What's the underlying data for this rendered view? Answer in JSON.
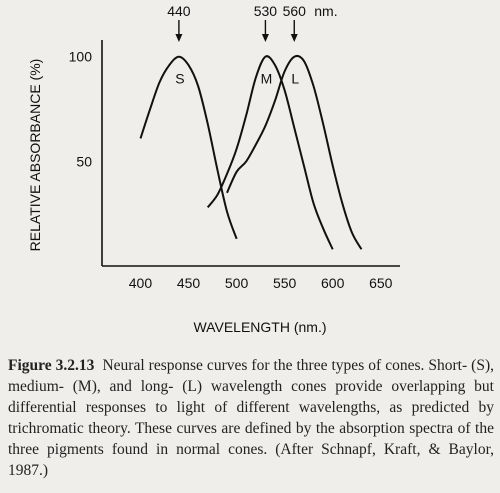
{
  "chart_data": {
    "type": "line",
    "title": "",
    "xlabel": "WAVELENGTH (nm.)",
    "ylabel": "RELATIVE ABSORBANCE (%)",
    "xlim": [
      360,
      670
    ],
    "ylim": [
      0,
      108
    ],
    "x_ticks": [
      400,
      450,
      500,
      550,
      600,
      650
    ],
    "y_ticks": [
      50,
      100
    ],
    "grid": false,
    "legend": "none",
    "series": [
      {
        "name": "S",
        "peak": 440,
        "x": [
          400,
          410,
          420,
          430,
          440,
          450,
          460,
          470,
          480,
          490,
          500
        ],
        "y": [
          61,
          75,
          88,
          96,
          100,
          96,
          86,
          68,
          46,
          26,
          13
        ]
      },
      {
        "name": "M",
        "peak": 530,
        "x": [
          470,
          480,
          490,
          500,
          510,
          520,
          530,
          540,
          550,
          560,
          570,
          580,
          590,
          600
        ],
        "y": [
          28,
          34,
          44,
          56,
          72,
          90,
          100,
          96,
          84,
          66,
          48,
          30,
          18,
          8
        ]
      },
      {
        "name": "L",
        "peak": 560,
        "x": [
          490,
          500,
          510,
          520,
          530,
          540,
          550,
          560,
          570,
          580,
          590,
          600,
          610,
          620,
          630
        ],
        "y": [
          35,
          45,
          50,
          58,
          67,
          79,
          93,
          100,
          98,
          86,
          68,
          48,
          30,
          16,
          8
        ]
      }
    ],
    "annotations": [
      {
        "text": "440",
        "x": 440
      },
      {
        "text": "530",
        "x": 530
      },
      {
        "text": "560",
        "x": 560
      }
    ],
    "annotation_unit": "nm."
  },
  "caption": {
    "figure_label": "Figure 3.2.13",
    "text": "Neural response curves for the three types of cones. Short- (S), medium- (M), and long- (L) wavelength cones provide overlapping but differential responses to light of different wavelengths, as predicted by trichromatic theory. These curves are defined by the absorption spectra of the three pigments found in normal cones. (After Schnapf, Kraft, & Baylor, 1987.)"
  },
  "colors": {
    "ink": "#111111",
    "background": "#efeeeb"
  }
}
